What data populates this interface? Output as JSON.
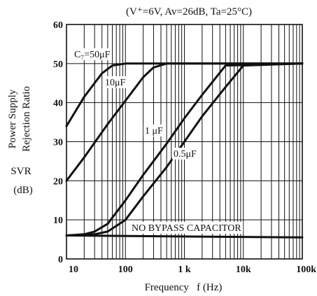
{
  "chart_data": {
    "type": "line",
    "title": "(V⁺=6V, Av=26dB, Ta=25°C)",
    "xlabel": "Frequency   f (Hz)",
    "ylabel_lines": [
      "Power Supply",
      "Rejection Ratio"
    ],
    "ylabel_sub": [
      "SVR",
      "(dB)"
    ],
    "x_scale": "log",
    "xlim": [
      10,
      100000
    ],
    "ylim": [
      0,
      60
    ],
    "x_ticks": [
      10,
      100,
      1000,
      10000,
      100000
    ],
    "x_tick_labels": [
      "10",
      "100",
      "1 k",
      "10k",
      "100k"
    ],
    "y_ticks": [
      0,
      10,
      20,
      30,
      40,
      50,
      60
    ],
    "y_tick_labels": [
      "0",
      "10",
      "20",
      "30",
      "40",
      "50",
      "60"
    ],
    "grid": true,
    "series": [
      {
        "name": "C₇=50μF",
        "x": [
          10,
          20,
          40,
          60,
          100,
          150,
          200,
          100000
        ],
        "y": [
          34,
          41.5,
          47.5,
          49.5,
          50,
          50,
          50,
          50
        ]
      },
      {
        "name": "10μF",
        "x": [
          10,
          20,
          50,
          100,
          200,
          300,
          500,
          100000
        ],
        "y": [
          20,
          26,
          34.5,
          40.5,
          46.5,
          49,
          50,
          50
        ]
      },
      {
        "name": "1 μF",
        "x": [
          10,
          20,
          30,
          50,
          100,
          200,
          500,
          1000,
          2000,
          5000,
          100000
        ],
        "y": [
          6,
          6.3,
          7,
          9,
          15,
          21.5,
          29.5,
          36,
          42,
          49.5,
          50
        ]
      },
      {
        "name": "0.5μF",
        "x": [
          10,
          30,
          50,
          100,
          200,
          500,
          1000,
          2000,
          5000,
          10000,
          100000
        ],
        "y": [
          6,
          6.3,
          7,
          10,
          16,
          23.5,
          30,
          36.5,
          44,
          49.5,
          50
        ]
      },
      {
        "name": "NO BYPASS CAPACITOR",
        "x": [
          10,
          100000
        ],
        "y": [
          6,
          5.5
        ]
      }
    ],
    "annotations": [
      {
        "text": "C₇=50μF",
        "series": 0
      },
      {
        "text": "10μF",
        "series": 1
      },
      {
        "text": "1 μF",
        "series": 2
      },
      {
        "text": "0.5μF",
        "series": 3
      },
      {
        "text": "NO BYPASS CAPACITOR",
        "series": 4
      }
    ]
  }
}
